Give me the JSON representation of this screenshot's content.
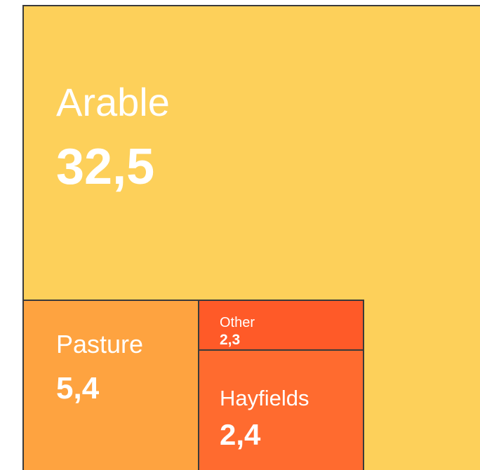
{
  "chart_data": {
    "type": "treemap",
    "categories": [
      "Arable",
      "Pasture",
      "Other",
      "Hayfields"
    ],
    "values": [
      32.5,
      5.4,
      2.3,
      2.4
    ],
    "value_labels": [
      "32,5",
      "5,4",
      "2,3",
      "2,4"
    ],
    "colors": [
      "#fdd05a",
      "#fea340",
      "#ff5a28",
      "#ff6b2f"
    ]
  }
}
